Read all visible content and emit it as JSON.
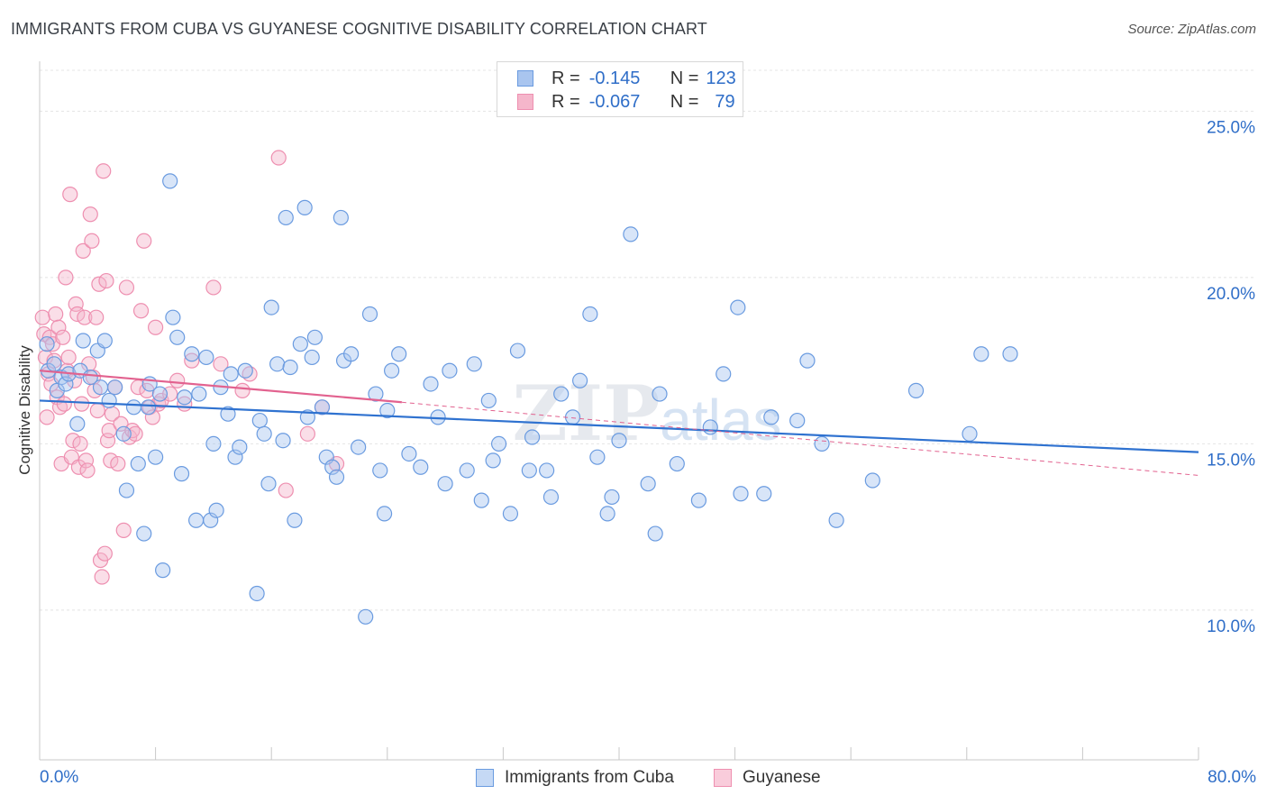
{
  "title": "IMMIGRANTS FROM CUBA VS GUYANESE COGNITIVE DISABILITY CORRELATION CHART",
  "source": "Source: ZipAtlas.com",
  "watermark": "ZIPatlas",
  "legend": {
    "series1": {
      "r_label": "R =",
      "r_value": "-0.145",
      "n_label": "N =",
      "n_value": "123"
    },
    "series2": {
      "r_label": "R =",
      "r_value": "-0.067",
      "n_label": "N =",
      "n_value": "79"
    }
  },
  "chart_data": {
    "type": "scatter",
    "title": "IMMIGRANTS FROM CUBA VS GUYANESE COGNITIVE DISABILITY CORRELATION CHART",
    "xlabel": "",
    "ylabel": "Cognitive Disability",
    "xlim": [
      0,
      80
    ],
    "ylim": [
      5.5,
      26.5
    ],
    "x_tick_labels": [
      "0.0%",
      "80.0%"
    ],
    "y_ticks": [
      10,
      15,
      20,
      25
    ],
    "y_tick_labels": [
      "10.0%",
      "15.0%",
      "20.0%",
      "25.0%"
    ],
    "grid": true,
    "colors": {
      "blue_fill": "#a9c5ef",
      "blue_stroke": "#6a9be0",
      "blue_line": "#2f72d0",
      "pink_fill": "#f5b6cb",
      "pink_stroke": "#ee8fb0",
      "pink_line": "#e2628f"
    },
    "series": [
      {
        "name": "Immigrants from Cuba",
        "trend": {
          "x": [
            0,
            80
          ],
          "y": [
            16.3,
            14.75
          ]
        },
        "points": [
          [
            0.5,
            18.0
          ],
          [
            0.6,
            17.2
          ],
          [
            1.0,
            17.4
          ],
          [
            1.2,
            16.6
          ],
          [
            1.5,
            17.0
          ],
          [
            1.8,
            16.8
          ],
          [
            2.0,
            17.1
          ],
          [
            2.6,
            15.6
          ],
          [
            2.8,
            17.2
          ],
          [
            3.0,
            18.1
          ],
          [
            3.5,
            17.0
          ],
          [
            4.0,
            17.8
          ],
          [
            4.2,
            16.7
          ],
          [
            4.5,
            18.1
          ],
          [
            4.8,
            16.3
          ],
          [
            5.2,
            16.7
          ],
          [
            5.8,
            15.3
          ],
          [
            6.0,
            13.6
          ],
          [
            6.5,
            16.1
          ],
          [
            6.8,
            14.4
          ],
          [
            7.2,
            12.3
          ],
          [
            7.5,
            16.1
          ],
          [
            7.6,
            16.8
          ],
          [
            8.0,
            14.6
          ],
          [
            8.3,
            16.5
          ],
          [
            8.5,
            11.2
          ],
          [
            9.0,
            22.9
          ],
          [
            9.2,
            18.8
          ],
          [
            9.5,
            18.2
          ],
          [
            9.8,
            14.1
          ],
          [
            10.0,
            16.4
          ],
          [
            10.5,
            17.7
          ],
          [
            10.8,
            12.7
          ],
          [
            11.0,
            16.5
          ],
          [
            11.5,
            17.6
          ],
          [
            11.8,
            12.7
          ],
          [
            12.0,
            15.0
          ],
          [
            12.2,
            13.0
          ],
          [
            12.5,
            16.7
          ],
          [
            13.0,
            15.9
          ],
          [
            13.2,
            17.1
          ],
          [
            13.5,
            14.6
          ],
          [
            13.8,
            14.9
          ],
          [
            14.2,
            17.2
          ],
          [
            15.0,
            10.5
          ],
          [
            15.2,
            15.7
          ],
          [
            15.5,
            15.3
          ],
          [
            15.8,
            13.8
          ],
          [
            16.0,
            19.1
          ],
          [
            16.4,
            17.4
          ],
          [
            16.8,
            15.1
          ],
          [
            17.0,
            21.8
          ],
          [
            17.3,
            17.3
          ],
          [
            17.6,
            12.7
          ],
          [
            18.0,
            18.0
          ],
          [
            18.3,
            22.1
          ],
          [
            18.5,
            15.8
          ],
          [
            18.8,
            17.6
          ],
          [
            19.0,
            18.2
          ],
          [
            19.5,
            16.1
          ],
          [
            19.8,
            14.6
          ],
          [
            20.2,
            14.3
          ],
          [
            20.5,
            14.0
          ],
          [
            20.8,
            21.8
          ],
          [
            21.0,
            17.5
          ],
          [
            21.5,
            17.7
          ],
          [
            22.0,
            14.9
          ],
          [
            22.5,
            9.8
          ],
          [
            22.8,
            18.9
          ],
          [
            23.2,
            16.5
          ],
          [
            23.5,
            14.2
          ],
          [
            23.8,
            12.9
          ],
          [
            24.0,
            16.0
          ],
          [
            24.3,
            17.2
          ],
          [
            24.8,
            17.7
          ],
          [
            25.5,
            14.7
          ],
          [
            26.3,
            14.3
          ],
          [
            27.0,
            16.8
          ],
          [
            27.5,
            15.8
          ],
          [
            28.0,
            13.8
          ],
          [
            28.3,
            17.2
          ],
          [
            29.5,
            14.2
          ],
          [
            30.0,
            17.4
          ],
          [
            30.5,
            13.3
          ],
          [
            31.0,
            16.3
          ],
          [
            31.3,
            14.5
          ],
          [
            31.7,
            15.0
          ],
          [
            32.5,
            12.9
          ],
          [
            33.0,
            17.8
          ],
          [
            33.8,
            14.2
          ],
          [
            34.0,
            15.2
          ],
          [
            35.0,
            14.2
          ],
          [
            35.3,
            13.4
          ],
          [
            36.0,
            16.5
          ],
          [
            36.8,
            15.8
          ],
          [
            37.3,
            16.9
          ],
          [
            38.0,
            18.9
          ],
          [
            38.5,
            14.6
          ],
          [
            39.2,
            12.9
          ],
          [
            39.5,
            13.4
          ],
          [
            40.0,
            15.1
          ],
          [
            40.8,
            21.3
          ],
          [
            42.0,
            13.8
          ],
          [
            42.5,
            12.3
          ],
          [
            42.8,
            16.5
          ],
          [
            44.0,
            14.4
          ],
          [
            45.5,
            13.3
          ],
          [
            46.3,
            15.5
          ],
          [
            47.2,
            17.1
          ],
          [
            48.2,
            19.1
          ],
          [
            48.4,
            13.5
          ],
          [
            50.0,
            13.5
          ],
          [
            50.5,
            15.8
          ],
          [
            52.3,
            15.7
          ],
          [
            53.0,
            17.5
          ],
          [
            54.0,
            15.0
          ],
          [
            55.0,
            12.7
          ],
          [
            57.5,
            13.9
          ],
          [
            60.5,
            16.6
          ],
          [
            64.2,
            15.3
          ],
          [
            65.0,
            17.7
          ],
          [
            67.0,
            17.7
          ]
        ]
      },
      {
        "name": "Guyanese",
        "trend": {
          "x": [
            0,
            25
          ],
          "y": [
            17.2,
            16.25
          ]
        },
        "dashed_trend": {
          "x": [
            25,
            80
          ],
          "y": [
            16.25,
            14.05
          ]
        },
        "points": [
          [
            0.2,
            18.8
          ],
          [
            0.3,
            18.3
          ],
          [
            0.4,
            17.6
          ],
          [
            0.5,
            15.8
          ],
          [
            0.6,
            17.1
          ],
          [
            0.7,
            18.2
          ],
          [
            0.8,
            16.8
          ],
          [
            0.9,
            18.0
          ],
          [
            1.0,
            17.5
          ],
          [
            1.1,
            18.9
          ],
          [
            1.2,
            16.4
          ],
          [
            1.3,
            18.5
          ],
          [
            1.4,
            16.1
          ],
          [
            1.5,
            14.4
          ],
          [
            1.6,
            18.2
          ],
          [
            1.7,
            16.2
          ],
          [
            1.8,
            20.0
          ],
          [
            1.9,
            17.2
          ],
          [
            2.0,
            17.6
          ],
          [
            2.1,
            22.5
          ],
          [
            2.2,
            14.6
          ],
          [
            2.3,
            15.1
          ],
          [
            2.4,
            16.9
          ],
          [
            2.5,
            19.2
          ],
          [
            2.6,
            18.9
          ],
          [
            2.7,
            14.3
          ],
          [
            2.8,
            15.0
          ],
          [
            2.9,
            16.2
          ],
          [
            3.0,
            20.8
          ],
          [
            3.1,
            18.8
          ],
          [
            3.2,
            14.5
          ],
          [
            3.3,
            14.2
          ],
          [
            3.4,
            17.4
          ],
          [
            3.5,
            21.9
          ],
          [
            3.6,
            21.1
          ],
          [
            3.7,
            17.0
          ],
          [
            3.8,
            16.6
          ],
          [
            3.9,
            18.8
          ],
          [
            4.0,
            16.0
          ],
          [
            4.1,
            19.8
          ],
          [
            4.2,
            11.5
          ],
          [
            4.3,
            11.0
          ],
          [
            4.4,
            23.2
          ],
          [
            4.5,
            11.7
          ],
          [
            4.6,
            19.9
          ],
          [
            4.7,
            15.1
          ],
          [
            4.8,
            15.4
          ],
          [
            4.9,
            14.5
          ],
          [
            5.0,
            15.9
          ],
          [
            5.2,
            16.7
          ],
          [
            5.4,
            14.4
          ],
          [
            5.6,
            15.6
          ],
          [
            5.8,
            12.4
          ],
          [
            6.0,
            19.7
          ],
          [
            6.2,
            15.2
          ],
          [
            6.4,
            15.4
          ],
          [
            6.6,
            15.3
          ],
          [
            6.8,
            16.7
          ],
          [
            7.0,
            19.0
          ],
          [
            7.2,
            21.1
          ],
          [
            7.4,
            16.6
          ],
          [
            7.6,
            16.1
          ],
          [
            7.8,
            15.8
          ],
          [
            8.0,
            18.5
          ],
          [
            8.2,
            16.2
          ],
          [
            8.4,
            16.3
          ],
          [
            9.0,
            16.5
          ],
          [
            9.5,
            16.9
          ],
          [
            10.0,
            16.2
          ],
          [
            10.5,
            17.5
          ],
          [
            12.0,
            19.7
          ],
          [
            12.5,
            17.4
          ],
          [
            14.0,
            16.6
          ],
          [
            14.5,
            17.1
          ],
          [
            16.5,
            23.6
          ],
          [
            17.0,
            13.6
          ],
          [
            18.5,
            15.3
          ],
          [
            19.5,
            16.1
          ],
          [
            20.5,
            14.4
          ]
        ]
      }
    ]
  },
  "bottom_legend": [
    "Immigrants from Cuba",
    "Guyanese"
  ]
}
